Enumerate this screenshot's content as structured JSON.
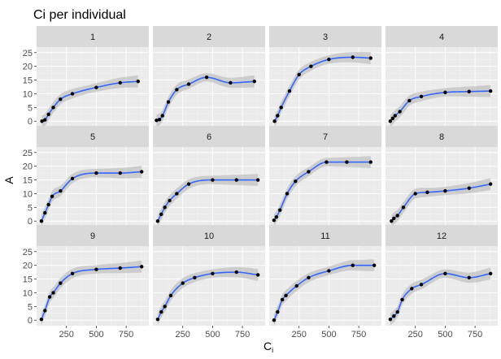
{
  "chart_data": {
    "type": "scatter",
    "title": "Ci per individual",
    "xlabel": "C",
    "xlabel_subscript": "i",
    "ylabel": "A",
    "xlim": [
      0,
      940
    ],
    "ylim": [
      -2,
      27
    ],
    "x_ticks": [
      250,
      500,
      750
    ],
    "y_ticks": [
      0,
      5,
      10,
      15,
      20,
      25
    ],
    "grid": true,
    "colors": {
      "panel_bg": "#ebebeb",
      "grid_major": "#ffffff",
      "strip_bg": "#d9d9d9",
      "point": "#000000",
      "smooth_line": "#3366ff",
      "ribbon": "#bfbfbf"
    },
    "panels": [
      {
        "label": "1",
        "points": [
          [
            45,
            0.0
          ],
          [
            70,
            0.5
          ],
          [
            100,
            2.5
          ],
          [
            140,
            5.0
          ],
          [
            200,
            8.0
          ],
          [
            300,
            10.0
          ],
          [
            500,
            12.3
          ],
          [
            700,
            14.0
          ],
          [
            850,
            14.5
          ]
        ]
      },
      {
        "label": "2",
        "points": [
          [
            30,
            0.3
          ],
          [
            55,
            0.6
          ],
          [
            80,
            2.0
          ],
          [
            130,
            7.0
          ],
          [
            200,
            11.5
          ],
          [
            300,
            13.5
          ],
          [
            450,
            16.0
          ],
          [
            650,
            14.0
          ],
          [
            850,
            14.5
          ]
        ]
      },
      {
        "label": "3",
        "points": [
          [
            45,
            0.0
          ],
          [
            70,
            2.0
          ],
          [
            100,
            5.0
          ],
          [
            170,
            11.0
          ],
          [
            250,
            17.0
          ],
          [
            350,
            20.0
          ],
          [
            500,
            22.5
          ],
          [
            700,
            23.3
          ],
          [
            850,
            23.0
          ]
        ]
      },
      {
        "label": "4",
        "points": [
          [
            40,
            0.0
          ],
          [
            60,
            1.0
          ],
          [
            80,
            2.0
          ],
          [
            120,
            3.5
          ],
          [
            200,
            7.5
          ],
          [
            300,
            9.0
          ],
          [
            500,
            10.5
          ],
          [
            700,
            10.8
          ],
          [
            880,
            11.0
          ]
        ]
      },
      {
        "label": "5",
        "points": [
          [
            40,
            0.0
          ],
          [
            70,
            3.0
          ],
          [
            100,
            6.0
          ],
          [
            130,
            9.0
          ],
          [
            200,
            11.0
          ],
          [
            300,
            15.5
          ],
          [
            500,
            17.5
          ],
          [
            700,
            17.5
          ],
          [
            880,
            18.0
          ]
        ]
      },
      {
        "label": "6",
        "points": [
          [
            40,
            0.0
          ],
          [
            70,
            2.5
          ],
          [
            100,
            5.0
          ],
          [
            140,
            7.5
          ],
          [
            200,
            10.0
          ],
          [
            300,
            13.5
          ],
          [
            500,
            15.0
          ],
          [
            700,
            15.0
          ],
          [
            880,
            15.0
          ]
        ]
      },
      {
        "label": "7",
        "points": [
          [
            40,
            0.3
          ],
          [
            60,
            1.5
          ],
          [
            90,
            4.0
          ],
          [
            150,
            10.0
          ],
          [
            220,
            14.5
          ],
          [
            330,
            18.0
          ],
          [
            480,
            21.5
          ],
          [
            650,
            21.5
          ],
          [
            850,
            21.5
          ]
        ]
      },
      {
        "label": "8",
        "points": [
          [
            50,
            0.0
          ],
          [
            70,
            1.0
          ],
          [
            100,
            2.0
          ],
          [
            150,
            5.0
          ],
          [
            250,
            10.0
          ],
          [
            350,
            10.5
          ],
          [
            500,
            11.0
          ],
          [
            700,
            12.0
          ],
          [
            880,
            13.5
          ]
        ]
      },
      {
        "label": "9",
        "points": [
          [
            40,
            0.3
          ],
          [
            70,
            3.5
          ],
          [
            110,
            8.5
          ],
          [
            140,
            10.0
          ],
          [
            200,
            13.5
          ],
          [
            300,
            17.0
          ],
          [
            500,
            18.5
          ],
          [
            700,
            19.0
          ],
          [
            880,
            19.5
          ]
        ]
      },
      {
        "label": "10",
        "points": [
          [
            40,
            0.3
          ],
          [
            70,
            3.0
          ],
          [
            100,
            5.0
          ],
          [
            150,
            9.0
          ],
          [
            250,
            13.5
          ],
          [
            350,
            15.5
          ],
          [
            500,
            17.0
          ],
          [
            700,
            17.5
          ],
          [
            880,
            16.5
          ]
        ]
      },
      {
        "label": "11",
        "points": [
          [
            40,
            0.0
          ],
          [
            70,
            3.0
          ],
          [
            110,
            7.5
          ],
          [
            140,
            9.0
          ],
          [
            230,
            12.5
          ],
          [
            330,
            15.5
          ],
          [
            500,
            18.0
          ],
          [
            700,
            20.0
          ],
          [
            880,
            20.0
          ]
        ]
      },
      {
        "label": "12",
        "points": [
          [
            40,
            0.3
          ],
          [
            70,
            1.5
          ],
          [
            100,
            3.0
          ],
          [
            140,
            7.5
          ],
          [
            220,
            11.5
          ],
          [
            300,
            13.0
          ],
          [
            500,
            17.0
          ],
          [
            700,
            15.5
          ],
          [
            880,
            17.0
          ]
        ]
      }
    ]
  }
}
